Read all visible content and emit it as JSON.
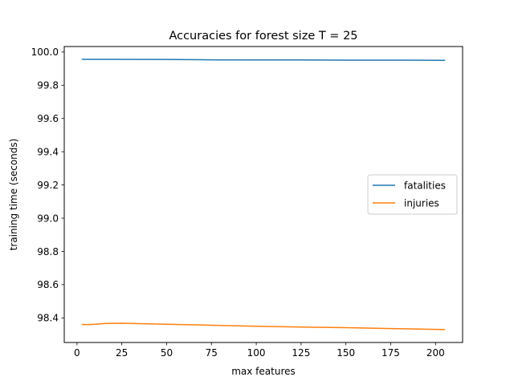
{
  "chart_data": {
    "type": "line",
    "title": "Accuracies for forest size T = 25",
    "xlabel": "max features",
    "ylabel": "training time (seconds)",
    "xlim": [
      -7.1,
      215.1
    ],
    "ylim": [
      98.252,
      100.033
    ],
    "x_ticks": [
      {
        "value": 0,
        "label": "0"
      },
      {
        "value": 25,
        "label": "25"
      },
      {
        "value": 50,
        "label": "50"
      },
      {
        "value": 75,
        "label": "75"
      },
      {
        "value": 100,
        "label": "100"
      },
      {
        "value": 125,
        "label": "125"
      },
      {
        "value": 150,
        "label": "150"
      },
      {
        "value": 175,
        "label": "175"
      },
      {
        "value": 200,
        "label": "200"
      }
    ],
    "y_ticks": [
      {
        "value": 98.4,
        "label": "98.4"
      },
      {
        "value": 98.6,
        "label": "98.6"
      },
      {
        "value": 98.8,
        "label": "98.8"
      },
      {
        "value": 99.0,
        "label": "99.0"
      },
      {
        "value": 99.2,
        "label": "99.2"
      },
      {
        "value": 99.4,
        "label": "99.4"
      },
      {
        "value": 99.6,
        "label": "99.6"
      },
      {
        "value": 99.8,
        "label": "99.8"
      },
      {
        "value": 100.0,
        "label": "100.0"
      }
    ],
    "grid": false,
    "legend_position": "center-right",
    "series": [
      {
        "name": "fatalities",
        "color": "#1f77b4",
        "x": [
          3,
          15,
          25,
          50,
          75,
          100,
          125,
          150,
          175,
          205
        ],
        "y": [
          99.956,
          99.956,
          99.956,
          99.955,
          99.953,
          99.952,
          99.952,
          99.951,
          99.951,
          99.95
        ]
      },
      {
        "name": "injuries",
        "color": "#ff7f0e",
        "x": [
          3,
          8,
          15,
          25,
          50,
          75,
          100,
          125,
          150,
          175,
          205
        ],
        "y": [
          98.36,
          98.36,
          98.366,
          98.368,
          98.362,
          98.356,
          98.35,
          98.345,
          98.341,
          98.336,
          98.33
        ]
      }
    ]
  }
}
